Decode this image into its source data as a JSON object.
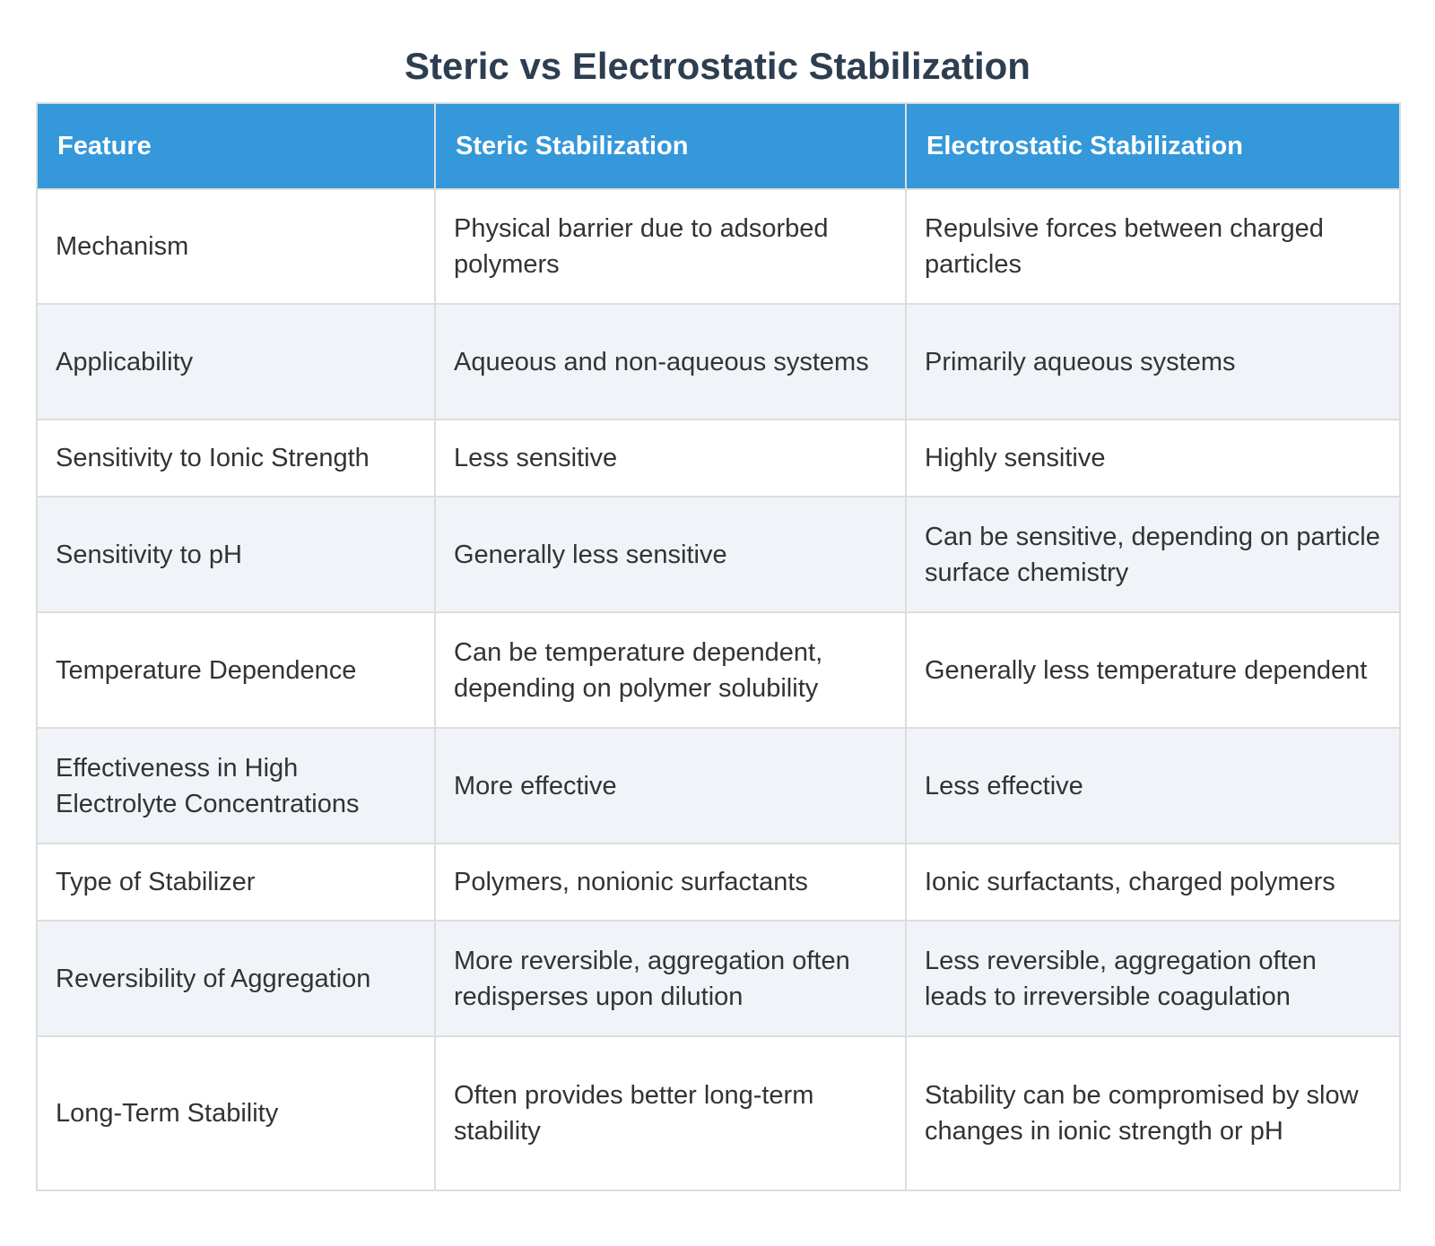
{
  "title": "Steric vs Electrostatic Stabilization",
  "table": {
    "headers": [
      "Feature",
      "Steric Stabilization",
      "Electrostatic Stabilization"
    ],
    "rows": [
      [
        "Mechanism",
        "Physical barrier due to adsorbed polymers",
        "Repulsive forces between charged particles"
      ],
      [
        "Applicability",
        "Aqueous and non-aqueous systems",
        "Primarily aqueous systems"
      ],
      [
        "Sensitivity to Ionic Strength",
        "Less sensitive",
        "Highly sensitive"
      ],
      [
        "Sensitivity to pH",
        "Generally less sensitive",
        "Can be sensitive, depending on particle surface chemistry"
      ],
      [
        "Temperature Dependence",
        "Can be temperature dependent, depending on polymer solubility",
        "Generally less temperature dependent"
      ],
      [
        "Effectiveness in High Electrolyte Concentrations",
        "More effective",
        "Less effective"
      ],
      [
        "Type of Stabilizer",
        "Polymers, nonionic surfactants",
        "Ionic surfactants, charged polymers"
      ],
      [
        "Reversibility of Aggregation",
        "More reversible, aggregation often redisperses upon dilution",
        "Less reversible, aggregation often leads to irreversible coagulation"
      ],
      [
        "Long-Term Stability",
        "Often provides better long-term stability",
        "Stability can be compromised by slow changes in ionic strength or pH"
      ]
    ]
  },
  "colors": {
    "header_bg": "#3498db",
    "header_text": "#ffffff",
    "title_text": "#2c3e50",
    "row_alt_bg": "#f0f4f9",
    "border": "#dddddd"
  }
}
